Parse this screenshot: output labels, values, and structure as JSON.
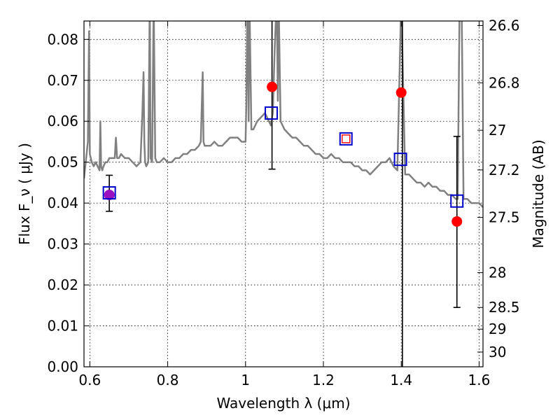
{
  "chart_data": {
    "type": "line",
    "xlabel": "Wavelength  λ (μm)",
    "ylabel": "Flux  F_ν  ( μJy )",
    "ylabel_right": "Magnitude (AB)",
    "xlim": [
      0.585,
      1.61
    ],
    "ylim": [
      0.0,
      0.0845
    ],
    "grid": true,
    "x_ticks": [
      {
        "value": 0.6,
        "label": "0.6"
      },
      {
        "value": 0.8,
        "label": "0.8"
      },
      {
        "value": 1.0,
        "label": "1"
      },
      {
        "value": 1.2,
        "label": "1.2"
      },
      {
        "value": 1.4,
        "label": "1.4"
      },
      {
        "value": 1.6,
        "label": "1.6"
      }
    ],
    "y_ticks": [
      {
        "value": 0.0,
        "label": "0.00"
      },
      {
        "value": 0.01,
        "label": "0.01"
      },
      {
        "value": 0.02,
        "label": "0.02"
      },
      {
        "value": 0.03,
        "label": "0.03"
      },
      {
        "value": 0.04,
        "label": "0.04"
      },
      {
        "value": 0.05,
        "label": "0.05"
      },
      {
        "value": 0.06,
        "label": "0.06"
      },
      {
        "value": 0.07,
        "label": "0.07"
      },
      {
        "value": 0.08,
        "label": "0.08"
      }
    ],
    "mag_ticks": [
      {
        "value": 0.0834,
        "label": "26.6"
      },
      {
        "value": 0.0694,
        "label": "26.8"
      },
      {
        "value": 0.0578,
        "label": "27"
      },
      {
        "value": 0.0481,
        "label": "27.2"
      },
      {
        "value": 0.0365,
        "label": "27.5"
      },
      {
        "value": 0.023,
        "label": "28"
      },
      {
        "value": 0.0145,
        "label": "28.5"
      },
      {
        "value": 0.0092,
        "label": "29"
      },
      {
        "value": 0.0036,
        "label": "30"
      }
    ],
    "series": [
      {
        "color": "#808080",
        "x": [
          0.585,
          0.595,
          0.598,
          0.6,
          0.605,
          0.61,
          0.615,
          0.62,
          0.625,
          0.627,
          0.629,
          0.632,
          0.635,
          0.64,
          0.645,
          0.65,
          0.655,
          0.66,
          0.664,
          0.667,
          0.67,
          0.675,
          0.68,
          0.69,
          0.7,
          0.71,
          0.72,
          0.73,
          0.735,
          0.738,
          0.74,
          0.742,
          0.745,
          0.75,
          0.754,
          0.756,
          0.76,
          0.764,
          0.768,
          0.772,
          0.78,
          0.79,
          0.8,
          0.81,
          0.82,
          0.83,
          0.84,
          0.85,
          0.86,
          0.87,
          0.88,
          0.885,
          0.89,
          0.892,
          0.895,
          0.9,
          0.91,
          0.92,
          0.93,
          0.94,
          0.95,
          0.96,
          0.97,
          0.98,
          0.99,
          1.0,
          1.002,
          1.005,
          1.008,
          1.01,
          1.015,
          1.02,
          1.03,
          1.04,
          1.05,
          1.06,
          1.065,
          1.07,
          1.075,
          1.08,
          1.083,
          1.085,
          1.09,
          1.1,
          1.11,
          1.12,
          1.13,
          1.14,
          1.15,
          1.16,
          1.17,
          1.18,
          1.19,
          1.2,
          1.21,
          1.22,
          1.23,
          1.24,
          1.25,
          1.26,
          1.27,
          1.28,
          1.29,
          1.3,
          1.31,
          1.32,
          1.33,
          1.34,
          1.35,
          1.36,
          1.37,
          1.38,
          1.39,
          1.4,
          1.41,
          1.42,
          1.43,
          1.44,
          1.45,
          1.46,
          1.47,
          1.48,
          1.49,
          1.5,
          1.51,
          1.52,
          1.53,
          1.54,
          1.545,
          1.55,
          1.555,
          1.56,
          1.57,
          1.58,
          1.59,
          1.6,
          1.61
        ],
        "y": [
          0.046,
          0.055,
          0.082,
          0.052,
          0.05,
          0.049,
          0.05,
          0.049,
          0.048,
          0.06,
          0.049,
          0.048,
          0.049,
          0.05,
          0.05,
          0.051,
          0.051,
          0.051,
          0.051,
          0.056,
          0.051,
          0.051,
          0.052,
          0.051,
          0.051,
          0.05,
          0.049,
          0.05,
          0.062,
          0.072,
          0.055,
          0.05,
          0.049,
          0.05,
          0.09,
          0.051,
          0.05,
          0.09,
          0.051,
          0.05,
          0.05,
          0.051,
          0.05,
          0.05,
          0.051,
          0.051,
          0.052,
          0.052,
          0.053,
          0.053,
          0.054,
          0.055,
          0.072,
          0.055,
          0.054,
          0.054,
          0.054,
          0.055,
          0.054,
          0.054,
          0.055,
          0.056,
          0.056,
          0.056,
          0.055,
          0.055,
          0.064,
          0.09,
          0.06,
          0.09,
          0.058,
          0.058,
          0.06,
          0.061,
          0.062,
          0.06,
          0.059,
          0.062,
          0.078,
          0.09,
          0.065,
          0.09,
          0.06,
          0.058,
          0.057,
          0.056,
          0.056,
          0.055,
          0.054,
          0.054,
          0.053,
          0.052,
          0.052,
          0.051,
          0.051,
          0.052,
          0.051,
          0.051,
          0.05,
          0.05,
          0.05,
          0.049,
          0.049,
          0.048,
          0.048,
          0.047,
          0.048,
          0.049,
          0.05,
          0.05,
          0.051,
          0.049,
          0.048,
          0.09,
          0.047,
          0.047,
          0.046,
          0.045,
          0.045,
          0.044,
          0.045,
          0.044,
          0.044,
          0.043,
          0.043,
          0.042,
          0.042,
          0.041,
          0.041,
          0.09,
          0.09,
          0.041,
          0.041,
          0.04,
          0.04,
          0.04,
          0.039
        ]
      }
    ],
    "photometry_filled": [
      {
        "x": 0.65,
        "y": 0.042,
        "color": "#9a0fbf"
      },
      {
        "x": 1.068,
        "y": 0.0684,
        "color": "#ff0000"
      },
      {
        "x": 1.4,
        "y": 0.067,
        "color": "#ff0000"
      },
      {
        "x": 1.543,
        "y": 0.0355,
        "color": "#ff0000"
      }
    ],
    "photometry_open": [
      {
        "x": 0.65,
        "y": 0.0425,
        "color": "#0000cc"
      },
      {
        "x": 1.066,
        "y": 0.062,
        "color": "#0000cc"
      },
      {
        "x": 1.258,
        "y": 0.0557,
        "color": "#0000cc"
      },
      {
        "x": 1.258,
        "y": 0.0557,
        "color": "#ff0000",
        "small": true
      },
      {
        "x": 1.398,
        "y": 0.0507,
        "color": "#0000cc"
      },
      {
        "x": 1.543,
        "y": 0.0405,
        "color": "#0000cc"
      }
    ],
    "error_bars": [
      {
        "x": 0.65,
        "y": 0.0425,
        "ylow": 0.038,
        "yhigh": 0.0468
      },
      {
        "x": 1.068,
        "y": 0.062,
        "ylow": 0.0483,
        "yhigh": 0.0845
      },
      {
        "x": 1.403,
        "y": 0.0507,
        "ylow": 0.0,
        "yhigh": 0.0845
      },
      {
        "x": 1.543,
        "y": 0.0355,
        "ylow": 0.0145,
        "yhigh": 0.0563
      }
    ]
  }
}
